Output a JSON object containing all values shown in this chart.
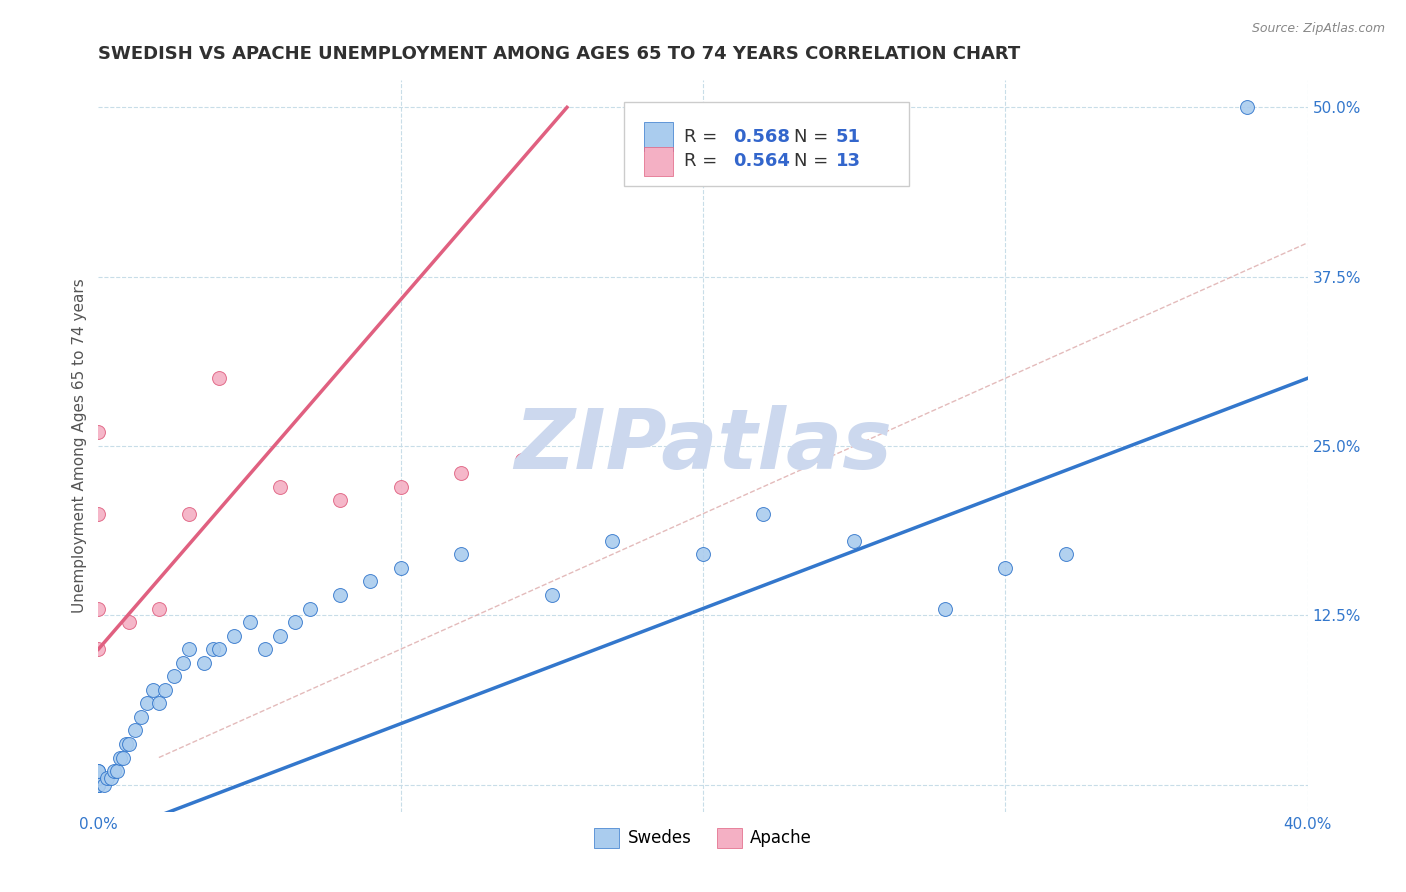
{
  "title": "SWEDISH VS APACHE UNEMPLOYMENT AMONG AGES 65 TO 74 YEARS CORRELATION CHART",
  "source_text": "Source: ZipAtlas.com",
  "ylabel": "Unemployment Among Ages 65 to 74 years",
  "xlim": [
    0.0,
    0.4
  ],
  "ylim": [
    -0.02,
    0.52
  ],
  "xticks": [
    0.0,
    0.1,
    0.2,
    0.3,
    0.4
  ],
  "xticklabels": [
    "0.0%",
    "",
    "",
    "",
    "40.0%"
  ],
  "yticks": [
    0.0,
    0.125,
    0.25,
    0.375,
    0.5
  ],
  "yticklabels": [
    "",
    "12.5%",
    "25.0%",
    "37.5%",
    "50.0%"
  ],
  "swedes_x": [
    0.0,
    0.0,
    0.0,
    0.0,
    0.0,
    0.0,
    0.0,
    0.0,
    0.0,
    0.0,
    0.002,
    0.003,
    0.004,
    0.005,
    0.006,
    0.007,
    0.008,
    0.009,
    0.01,
    0.012,
    0.014,
    0.016,
    0.018,
    0.02,
    0.022,
    0.025,
    0.028,
    0.03,
    0.035,
    0.038,
    0.04,
    0.045,
    0.05,
    0.055,
    0.06,
    0.065,
    0.07,
    0.08,
    0.09,
    0.1,
    0.12,
    0.15,
    0.17,
    0.2,
    0.22,
    0.25,
    0.28,
    0.3,
    0.32,
    0.38
  ],
  "swedes_y": [
    0.0,
    0.0,
    0.0,
    0.0,
    0.0,
    0.0,
    0.005,
    0.005,
    0.01,
    0.01,
    0.0,
    0.005,
    0.005,
    0.01,
    0.01,
    0.02,
    0.02,
    0.03,
    0.03,
    0.04,
    0.05,
    0.06,
    0.07,
    0.06,
    0.07,
    0.08,
    0.09,
    0.1,
    0.09,
    0.1,
    0.1,
    0.11,
    0.12,
    0.1,
    0.11,
    0.12,
    0.13,
    0.14,
    0.15,
    0.16,
    0.17,
    0.14,
    0.18,
    0.17,
    0.2,
    0.18,
    0.13,
    0.16,
    0.17,
    0.5
  ],
  "apache_x": [
    0.0,
    0.0,
    0.0,
    0.0,
    0.01,
    0.02,
    0.03,
    0.04,
    0.06,
    0.08,
    0.1,
    0.12,
    0.14
  ],
  "apache_y": [
    0.1,
    0.13,
    0.2,
    0.26,
    0.12,
    0.13,
    0.2,
    0.3,
    0.22,
    0.21,
    0.22,
    0.23,
    0.24
  ],
  "swedes_line": [
    0.0,
    0.4,
    -0.04,
    0.3
  ],
  "apache_line": [
    0.0,
    0.155,
    0.1,
    0.5
  ],
  "diag_line": [
    0.02,
    0.4,
    0.02,
    0.4
  ],
  "swedes_color": "#aaccee",
  "apache_color": "#f4b0c4",
  "swedes_line_color": "#3377cc",
  "apache_line_color": "#e06080",
  "diag_color": "#ddaaaa",
  "watermark": "ZIPatlas",
  "watermark_color": "#ccd8ee",
  "title_color": "#303030",
  "axis_label_color": "#555555",
  "tick_color": "#3377cc",
  "r_n_color": "#3366cc",
  "background_color": "#ffffff",
  "grid_color": "#c8dde8",
  "marker_size": 10,
  "legend_label_swedes": "Swedes",
  "legend_label_apache": "Apache"
}
